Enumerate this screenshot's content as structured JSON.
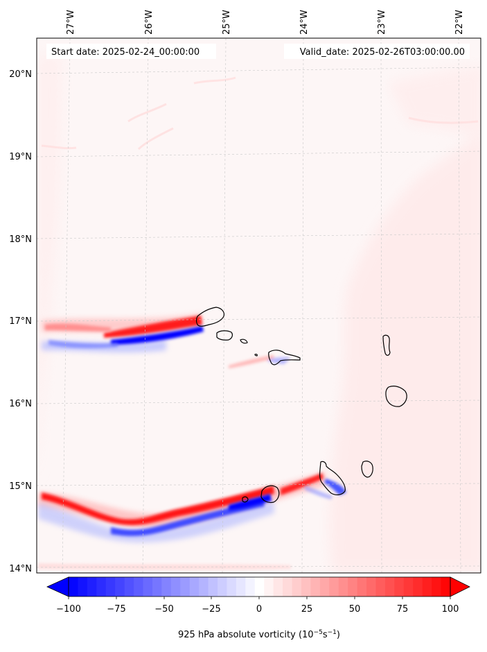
{
  "map": {
    "start_label": "Start date: 2025-02-24_00:00:00",
    "valid_label": "Valid_date: 2025-02-26T03:00:00.00"
  },
  "axes": {
    "lon_labels": [
      "27°W",
      "26°W",
      "25°W",
      "24°W",
      "23°W",
      "22°W"
    ],
    "lat_labels": [
      "20°N",
      "19°N",
      "18°N",
      "17°N",
      "16°N",
      "15°N",
      "14°N"
    ]
  },
  "colorbar": {
    "ticks": [
      "−100",
      "−75",
      "−50",
      "−25",
      "0",
      "25",
      "50",
      "75",
      "100"
    ],
    "label_prefix": "925 hPa absolute vorticity (10",
    "label_exp1": "−5",
    "label_mid": "s",
    "label_exp2": "−1",
    "label_suffix": ")",
    "min_color": "#0000ff",
    "mid_color": "#ffffff",
    "max_color": "#ff0000",
    "range": [
      -100,
      100
    ],
    "levels": 41
  }
}
